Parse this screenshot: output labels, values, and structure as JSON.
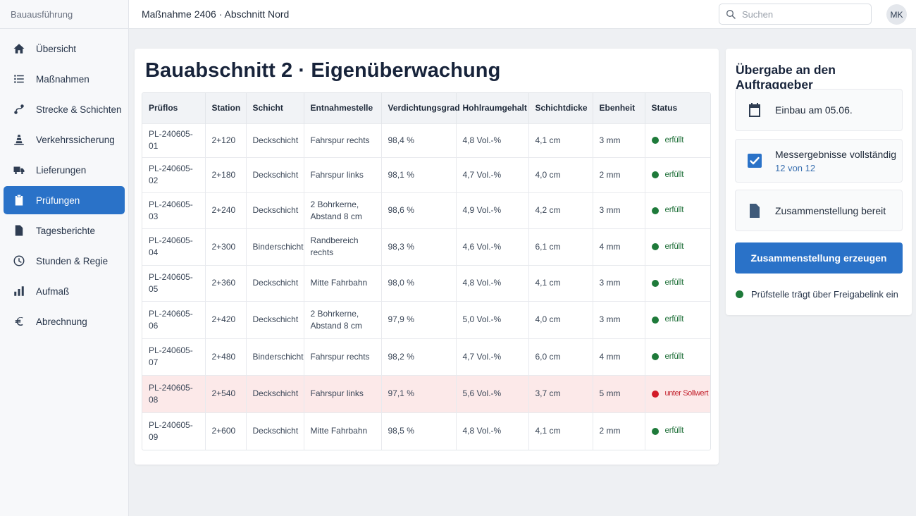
{
  "app": {
    "brand": "Bauausführung"
  },
  "sidebar": {
    "items": [
      {
        "label": "Übersicht",
        "icon": "home-icon"
      },
      {
        "label": "Maßnahmen",
        "icon": "list-icon"
      },
      {
        "label": "Strecke & Schichten",
        "icon": "route-icon"
      },
      {
        "label": "Verkehrssicherung",
        "icon": "traffic-cone-icon"
      },
      {
        "label": "Lieferungen",
        "icon": "truck-icon"
      },
      {
        "label": "Prüfungen",
        "icon": "clipboard-icon"
      },
      {
        "label": "Tagesberichte",
        "icon": "document-icon"
      },
      {
        "label": "Stunden & Regie",
        "icon": "clock-icon"
      },
      {
        "label": "Aufmaß",
        "icon": "bar-chart-icon"
      },
      {
        "label": "Abrechnung",
        "icon": "euro-icon"
      }
    ],
    "active_index": 5
  },
  "topbar": {
    "breadcrumb": "Maßnahme 2406 · Abschnitt Nord",
    "search_placeholder": "Suchen",
    "search_value": "",
    "avatar_initials": "MK"
  },
  "main": {
    "title": "Bauabschnitt 2 · Eigenüberwachung",
    "columns": [
      "Prüflos",
      "Station",
      "Schicht",
      "Entnahmestelle",
      "Verdichtungsgrad",
      "Hohlraumgehalt",
      "Schichtdicke",
      "Ebenheit",
      "Status"
    ],
    "rows": [
      {
        "prueflos": "PL-240605-01",
        "station": "2+120",
        "schicht": "Deckschicht",
        "entnahme": "Fahrspur rechts",
        "verdichtung": "98,4 %",
        "hohlraum": "4,8 Vol.-%",
        "dicke": "4,1 cm",
        "ebenheit": "3 mm",
        "status": "erfüllt",
        "ok": true
      },
      {
        "prueflos": "PL-240605-02",
        "station": "2+180",
        "schicht": "Deckschicht",
        "entnahme": "Fahrspur links",
        "verdichtung": "98,1 %",
        "hohlraum": "4,7 Vol.-%",
        "dicke": "4,0 cm",
        "ebenheit": "2 mm",
        "status": "erfüllt",
        "ok": true
      },
      {
        "prueflos": "PL-240605-03",
        "station": "2+240",
        "schicht": "Deckschicht",
        "entnahme": "2 Bohrkerne, Abstand 8 cm",
        "verdichtung": "98,6 %",
        "hohlraum": "4,9 Vol.-%",
        "dicke": "4,2 cm",
        "ebenheit": "3 mm",
        "status": "erfüllt",
        "ok": true
      },
      {
        "prueflos": "PL-240605-04",
        "station": "2+300",
        "schicht": "Binderschicht",
        "entnahme": "Randbereich rechts",
        "verdichtung": "98,3 %",
        "hohlraum": "4,6 Vol.-%",
        "dicke": "6,1 cm",
        "ebenheit": "4 mm",
        "status": "erfüllt",
        "ok": true
      },
      {
        "prueflos": "PL-240605-05",
        "station": "2+360",
        "schicht": "Deckschicht",
        "entnahme": "Mitte Fahrbahn",
        "verdichtung": "98,0 %",
        "hohlraum": "4,8 Vol.-%",
        "dicke": "4,1 cm",
        "ebenheit": "3 mm",
        "status": "erfüllt",
        "ok": true
      },
      {
        "prueflos": "PL-240605-06",
        "station": "2+420",
        "schicht": "Deckschicht",
        "entnahme": "2 Bohrkerne, Abstand 8 cm",
        "verdichtung": "97,9 %",
        "hohlraum": "5,0 Vol.-%",
        "dicke": "4,0 cm",
        "ebenheit": "3 mm",
        "status": "erfüllt",
        "ok": true
      },
      {
        "prueflos": "PL-240605-07",
        "station": "2+480",
        "schicht": "Binderschicht",
        "entnahme": "Fahrspur rechts",
        "verdichtung": "98,2 %",
        "hohlraum": "4,7 Vol.-%",
        "dicke": "6,0 cm",
        "ebenheit": "4 mm",
        "status": "erfüllt",
        "ok": true
      },
      {
        "prueflos": "PL-240605-08",
        "station": "2+540",
        "schicht": "Deckschicht",
        "entnahme": "Fahrspur links",
        "verdichtung": "97,1 %",
        "hohlraum": "5,6 Vol.-%",
        "dicke": "3,7 cm",
        "ebenheit": "5 mm",
        "status": "unter Sollwert",
        "ok": false
      },
      {
        "prueflos": "PL-240605-09",
        "station": "2+600",
        "schicht": "Deckschicht",
        "entnahme": "Mitte Fahrbahn",
        "verdichtung": "98,5 %",
        "hohlraum": "4,8 Vol.-%",
        "dicke": "4,1 cm",
        "ebenheit": "2 mm",
        "status": "erfüllt",
        "ok": true
      }
    ]
  },
  "handover": {
    "title": "Übergabe an den Auftraggeber",
    "steps": [
      {
        "label": "Einbau am 05.06.",
        "sub": "",
        "icon": "calendar-icon"
      },
      {
        "label": "Messergebnisse vollständig",
        "sub": "12 von 12",
        "icon": "checkbox-icon"
      },
      {
        "label": "Zusammenstellung bereit",
        "sub": "",
        "icon": "document-icon"
      }
    ],
    "button_label": "Zusammenstellung erzeugen",
    "note": "Prüfstelle trägt über Freigabelink ein"
  },
  "colors": {
    "accent": "#2a72c8",
    "ok": "#1e7a3a",
    "fail": "#d21b28",
    "fail_row": "#fce9e9"
  }
}
